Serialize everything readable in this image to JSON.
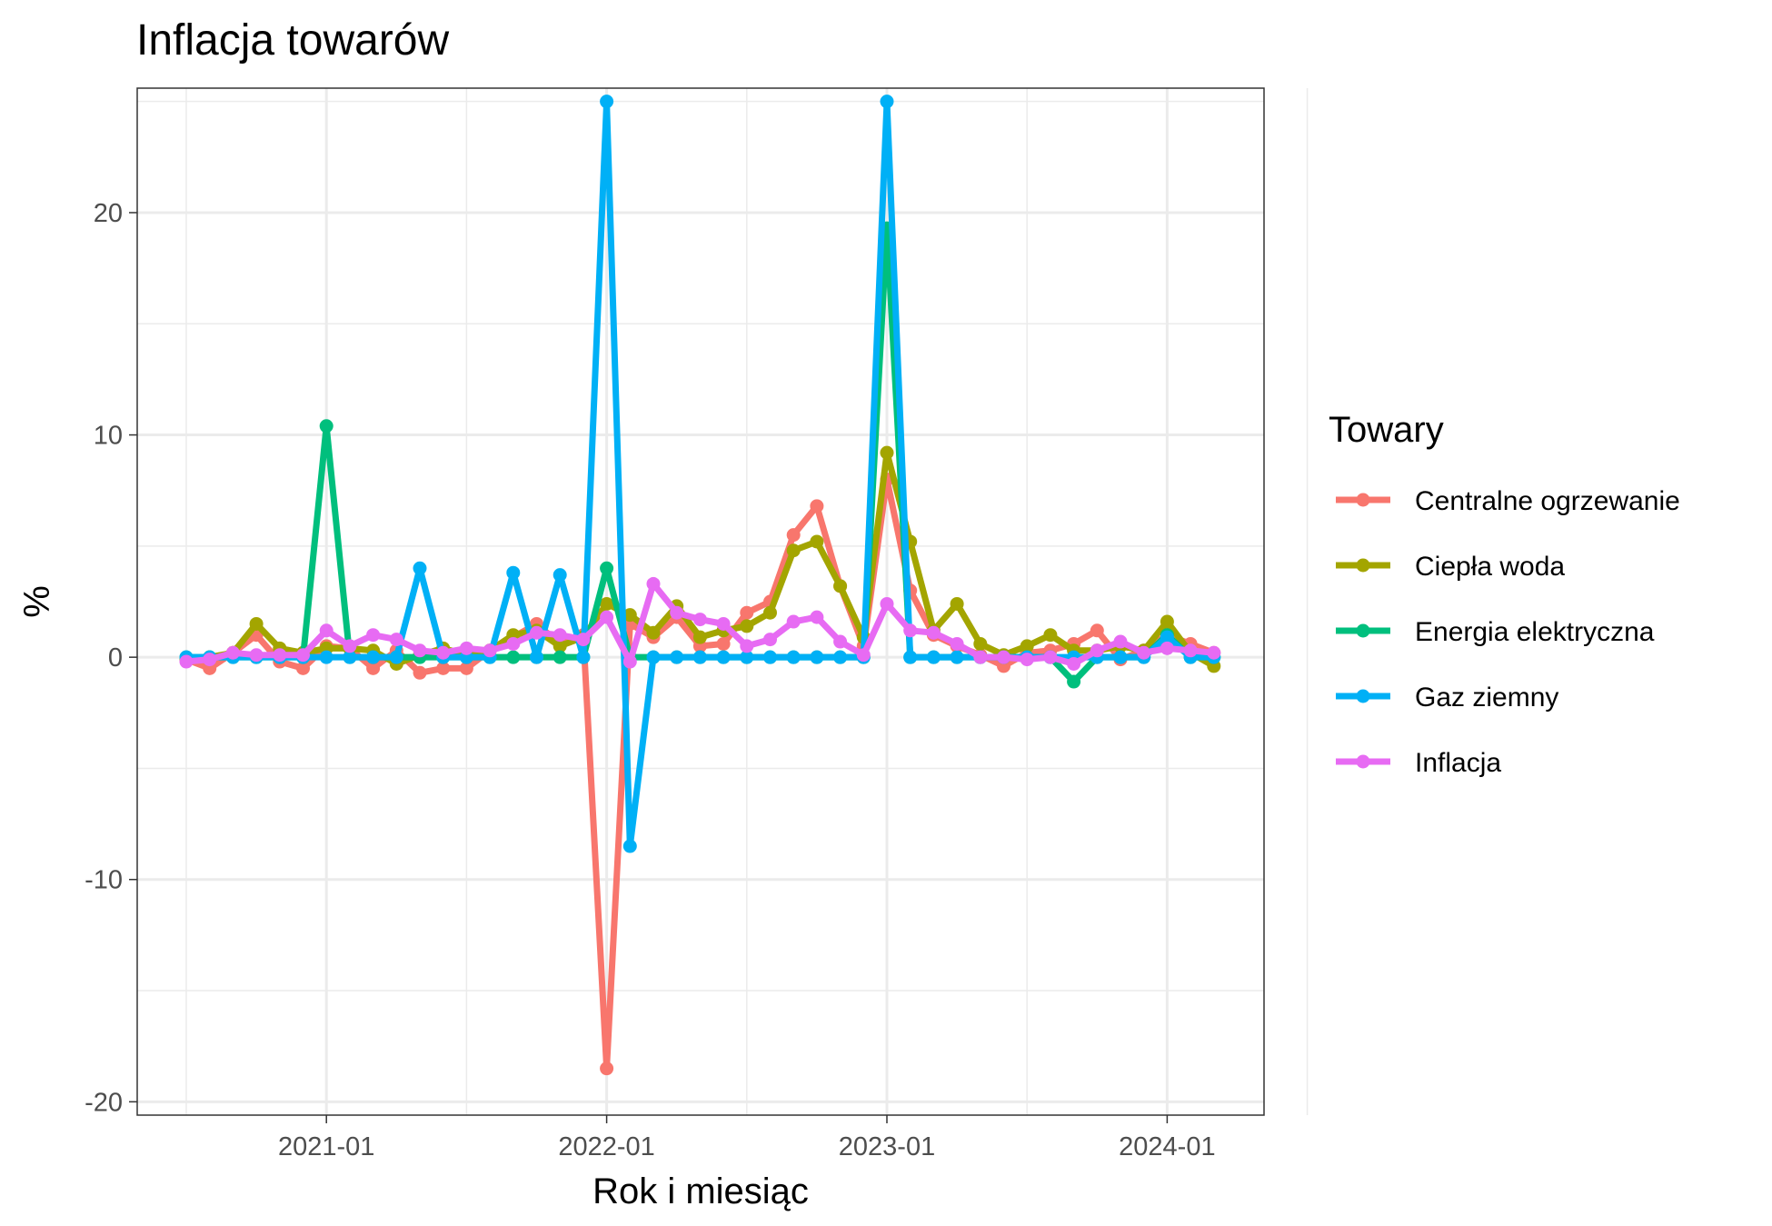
{
  "chart_data": {
    "type": "line",
    "title": "Inflacja towarów",
    "xlabel": "Rok i miesiąc",
    "ylabel": "%",
    "x_tick_labels": [
      "2021-01",
      "2022-01",
      "2023-01",
      "2024-01"
    ],
    "y_tick_labels": [
      "-20",
      "-10",
      "0",
      "10",
      "20"
    ],
    "x": [
      "2020-07",
      "2020-08",
      "2020-09",
      "2020-10",
      "2020-11",
      "2020-12",
      "2021-01",
      "2021-02",
      "2021-03",
      "2021-04",
      "2021-05",
      "2021-06",
      "2021-07",
      "2021-08",
      "2021-09",
      "2021-10",
      "2021-11",
      "2021-12",
      "2022-01",
      "2022-02",
      "2022-03",
      "2022-04",
      "2022-05",
      "2022-06",
      "2022-07",
      "2022-08",
      "2022-09",
      "2022-10",
      "2022-11",
      "2022-12",
      "2023-01",
      "2023-02",
      "2023-03",
      "2023-04",
      "2023-05",
      "2023-06",
      "2023-07",
      "2023-08",
      "2023-09",
      "2023-10",
      "2023-11",
      "2023-12",
      "2024-01",
      "2024-02",
      "2024-03"
    ],
    "ylim": [
      -20.6,
      25.6
    ],
    "legend_title": "Towary",
    "legend_position": "right",
    "grid": true,
    "series": [
      {
        "name": "Centralne ogrzewanie",
        "color": "#F8766D",
        "values": [
          -0.1,
          -0.5,
          0.2,
          1.0,
          -0.2,
          -0.5,
          0.5,
          0.4,
          -0.5,
          0.3,
          -0.7,
          -0.5,
          -0.5,
          0.3,
          0.9,
          1.5,
          0.6,
          1.0,
          -18.5,
          1.5,
          0.9,
          1.8,
          0.5,
          0.6,
          2.0,
          2.5,
          5.5,
          6.8,
          3.2,
          0.5,
          8.0,
          3.0,
          1.0,
          0.5,
          0.1,
          -0.4,
          0.2,
          0.3,
          0.6,
          1.2,
          -0.1,
          0.3,
          1.0,
          0.6,
          0.2
        ]
      },
      {
        "name": "Ciepła woda",
        "color": "#A3A500",
        "values": [
          -0.1,
          0.0,
          0.2,
          1.5,
          0.4,
          0.2,
          0.4,
          0.4,
          0.3,
          -0.3,
          0.1,
          0.4,
          0.1,
          0.3,
          1.0,
          1.2,
          0.5,
          0.9,
          2.4,
          1.9,
          1.1,
          2.3,
          0.9,
          1.2,
          1.4,
          2.0,
          4.8,
          5.2,
          3.2,
          0.9,
          9.2,
          5.2,
          1.2,
          2.4,
          0.6,
          0.1,
          0.5,
          1.0,
          0.3,
          0.3,
          0.5,
          0.3,
          1.6,
          0.2,
          -0.4
        ]
      },
      {
        "name": "Energia elektryczna",
        "color": "#00BF7D",
        "values": [
          0.0,
          0.0,
          0.0,
          0.0,
          0.0,
          0.0,
          10.4,
          0.0,
          0.0,
          0.0,
          0.0,
          0.0,
          0.0,
          0.0,
          0.0,
          0.0,
          0.0,
          0.0,
          4.0,
          0.0,
          0.0,
          0.0,
          0.0,
          0.0,
          0.0,
          0.0,
          0.0,
          0.0,
          0.0,
          0.0,
          19.3,
          0.0,
          0.0,
          0.0,
          0.0,
          0.0,
          0.0,
          0.0,
          -1.1,
          0.0,
          0.0,
          0.0,
          1.0,
          0.0,
          0.0
        ]
      },
      {
        "name": "Gaz ziemny",
        "color": "#00B0F6",
        "values": [
          0.0,
          0.0,
          0.0,
          0.0,
          0.0,
          0.0,
          0.0,
          0.0,
          0.0,
          0.0,
          4.0,
          0.0,
          0.0,
          0.0,
          3.8,
          0.0,
          3.7,
          0.0,
          25.0,
          -8.5,
          0.0,
          0.0,
          0.0,
          0.0,
          0.0,
          0.0,
          0.0,
          0.0,
          0.0,
          0.0,
          25.0,
          0.0,
          0.0,
          0.0,
          0.0,
          0.0,
          0.0,
          0.0,
          0.0,
          0.0,
          0.0,
          0.0,
          0.9,
          0.0,
          0.0
        ]
      },
      {
        "name": "Inflacja",
        "color": "#E76BF3",
        "values": [
          -0.2,
          -0.1,
          0.2,
          0.1,
          0.1,
          0.1,
          1.2,
          0.5,
          1.0,
          0.8,
          0.3,
          0.2,
          0.4,
          0.3,
          0.6,
          1.1,
          1.0,
          0.8,
          1.8,
          -0.2,
          3.3,
          2.0,
          1.7,
          1.5,
          0.5,
          0.8,
          1.6,
          1.8,
          0.7,
          0.1,
          2.4,
          1.2,
          1.1,
          0.6,
          0.0,
          0.0,
          -0.1,
          0.0,
          -0.3,
          0.3,
          0.7,
          0.2,
          0.4,
          0.3,
          0.2
        ]
      }
    ]
  }
}
